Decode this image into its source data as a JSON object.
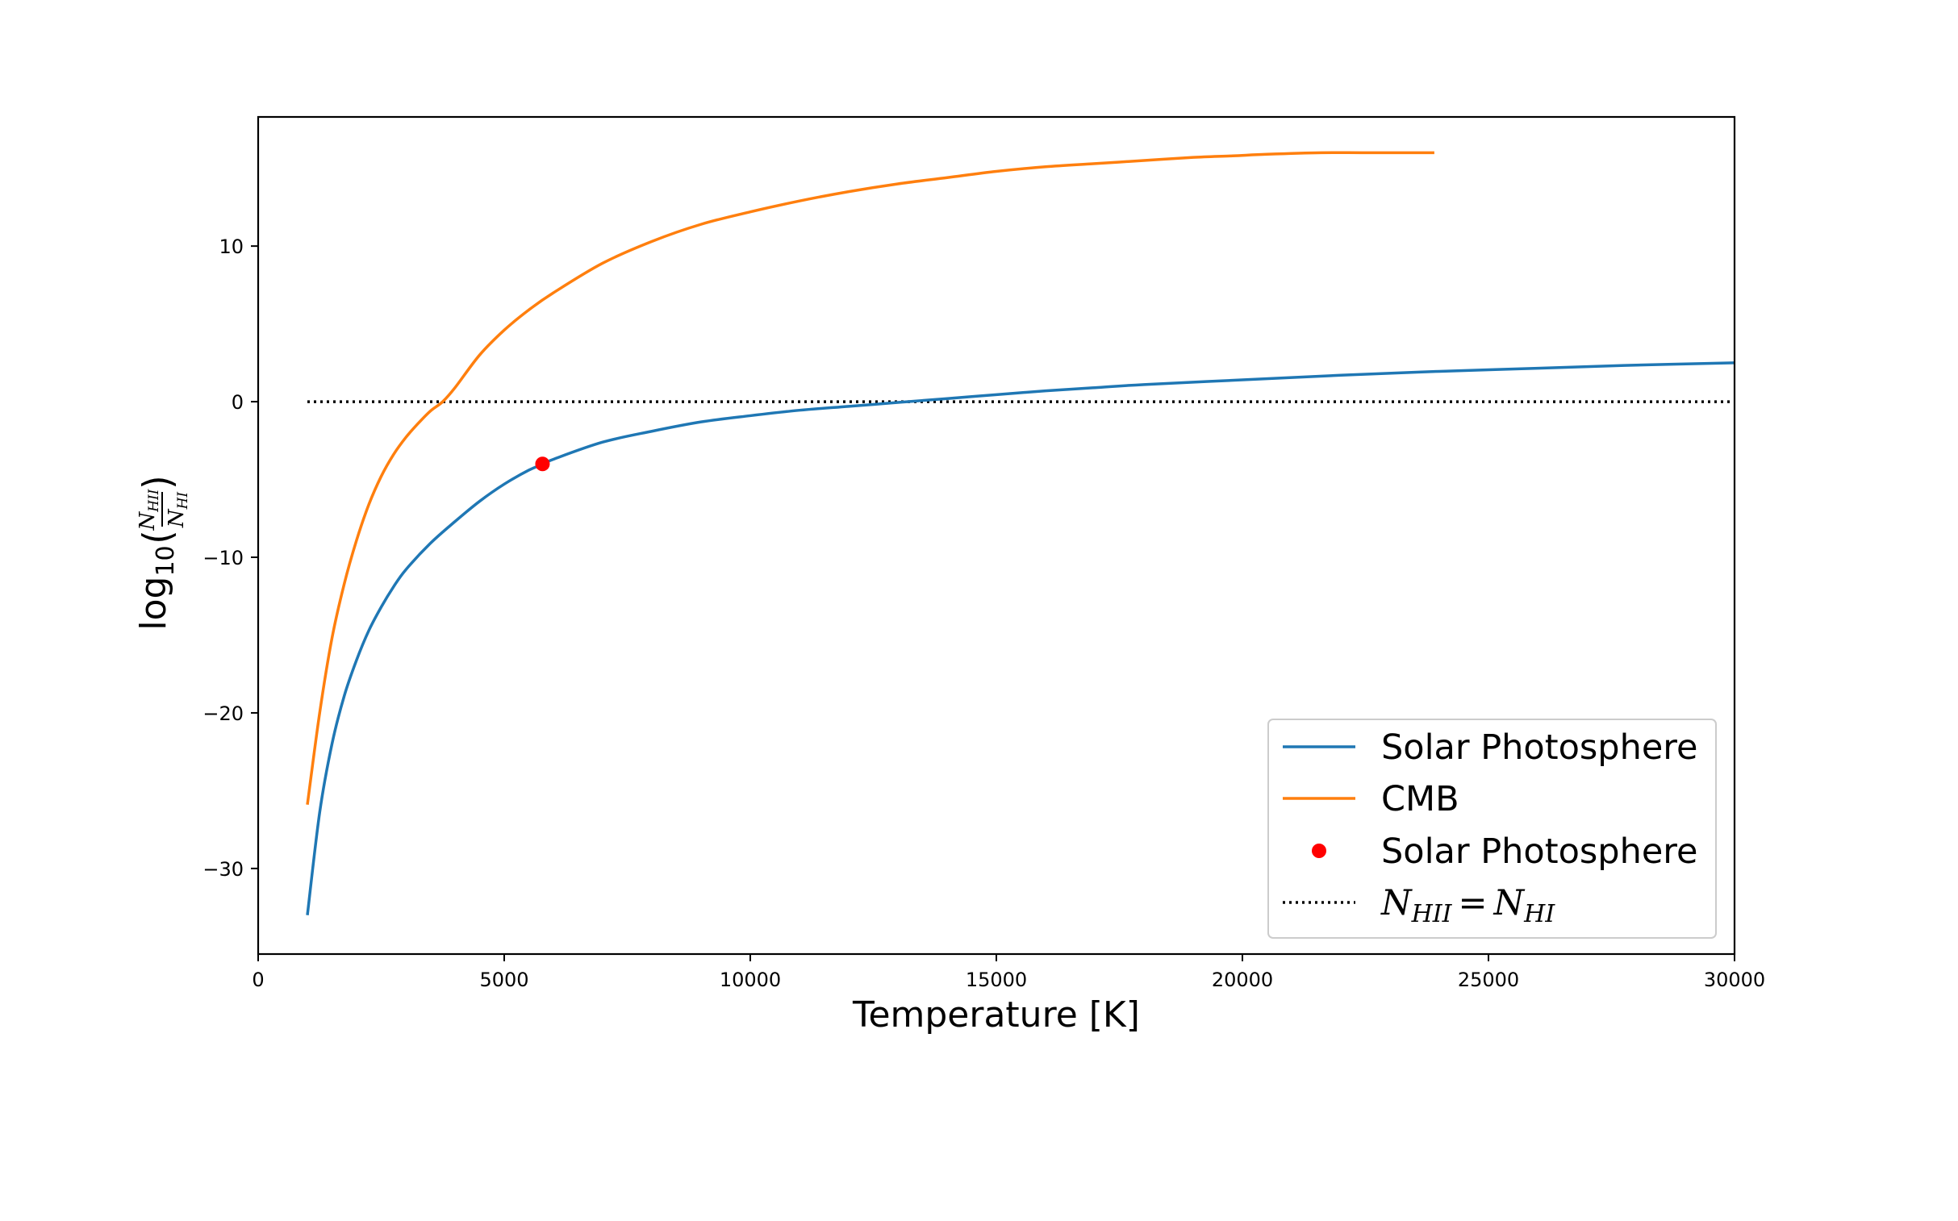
{
  "chart_data": {
    "type": "line",
    "xlabel": "Temperature [K]",
    "ylabel": {
      "prefix": "log",
      "subscript": "10",
      "numerator": "N",
      "numerator_sub": "HII",
      "denominator": "N",
      "denominator_sub": "HI"
    },
    "xlim": [
      0,
      30000
    ],
    "ylim": [
      -35.5,
      18.3
    ],
    "xticks": [
      0,
      5000,
      10000,
      15000,
      20000,
      25000,
      30000
    ],
    "xtick_labels": [
      "0",
      "5000",
      "10000",
      "15000",
      "20000",
      "25000",
      "30000"
    ],
    "yticks": [
      -30,
      -20,
      -10,
      0,
      10
    ],
    "ytick_labels": [
      "−30",
      "−20",
      "−10",
      "0",
      "10"
    ],
    "grid": false,
    "legend_position": "lower-right",
    "series": [
      {
        "name": "Solar Photosphere",
        "kind": "line",
        "color": "#1f77b4",
        "x": [
          1000,
          1250,
          1500,
          1750,
          2000,
          2250,
          2500,
          2750,
          3000,
          3500,
          4000,
          4500,
          5000,
          5500,
          5800,
          6000,
          7000,
          8000,
          9000,
          10000,
          11000,
          12000,
          13000,
          14000,
          15000,
          16000,
          17000,
          18000,
          20000,
          22000,
          24000,
          26000,
          28000,
          30000
        ],
        "y": [
          -33.0,
          -26.4,
          -22.0,
          -18.9,
          -16.6,
          -14.7,
          -13.2,
          -11.9,
          -10.8,
          -9.1,
          -7.7,
          -6.4,
          -5.3,
          -4.4,
          -4.0,
          -3.7,
          -2.6,
          -1.9,
          -1.3,
          -0.9,
          -0.55,
          -0.3,
          -0.05,
          0.2,
          0.45,
          0.7,
          0.9,
          1.1,
          1.4,
          1.7,
          1.95,
          2.15,
          2.35,
          2.5
        ]
      },
      {
        "name": "CMB",
        "kind": "line",
        "color": "#ff7f0e",
        "x": [
          1000,
          1250,
          1500,
          1750,
          2000,
          2250,
          2500,
          2750,
          3000,
          3250,
          3500,
          3750,
          4000,
          4500,
          5000,
          5500,
          6000,
          7000,
          8000,
          9000,
          10000,
          11000,
          12000,
          13000,
          14000,
          15000,
          16000,
          17000,
          18000,
          19000,
          19800,
          20500,
          21600,
          22500,
          23900
        ],
        "y": [
          -25.9,
          -20.0,
          -15.2,
          -11.7,
          -8.9,
          -6.6,
          -4.8,
          -3.4,
          -2.3,
          -1.4,
          -0.6,
          0.0,
          0.9,
          3.0,
          4.6,
          5.9,
          7.0,
          8.9,
          10.3,
          11.4,
          12.2,
          12.9,
          13.5,
          14.0,
          14.4,
          14.8,
          15.1,
          15.3,
          15.5,
          15.7,
          15.8,
          15.9,
          16.0,
          16.0,
          16.0
        ]
      },
      {
        "name": "Solar Photosphere",
        "kind": "point",
        "color": "#ff0000",
        "x": [
          5778
        ],
        "y": [
          -4.0
        ]
      },
      {
        "name": "N_HII = N_HI",
        "kind": "dotted",
        "color": "#000000",
        "x": [
          1000,
          30000
        ],
        "y": [
          0,
          0
        ]
      }
    ],
    "legend": [
      {
        "label": "Solar Photosphere",
        "kind": "line"
      },
      {
        "label": "CMB",
        "kind": "line"
      },
      {
        "label": "Solar Photosphere",
        "kind": "point"
      },
      {
        "label": "N_HII = N_HI",
        "kind": "dotted",
        "math": {
          "a": "N",
          "a_sub": "HII",
          "op": "=",
          "b": "N",
          "b_sub": "HI"
        }
      }
    ]
  }
}
